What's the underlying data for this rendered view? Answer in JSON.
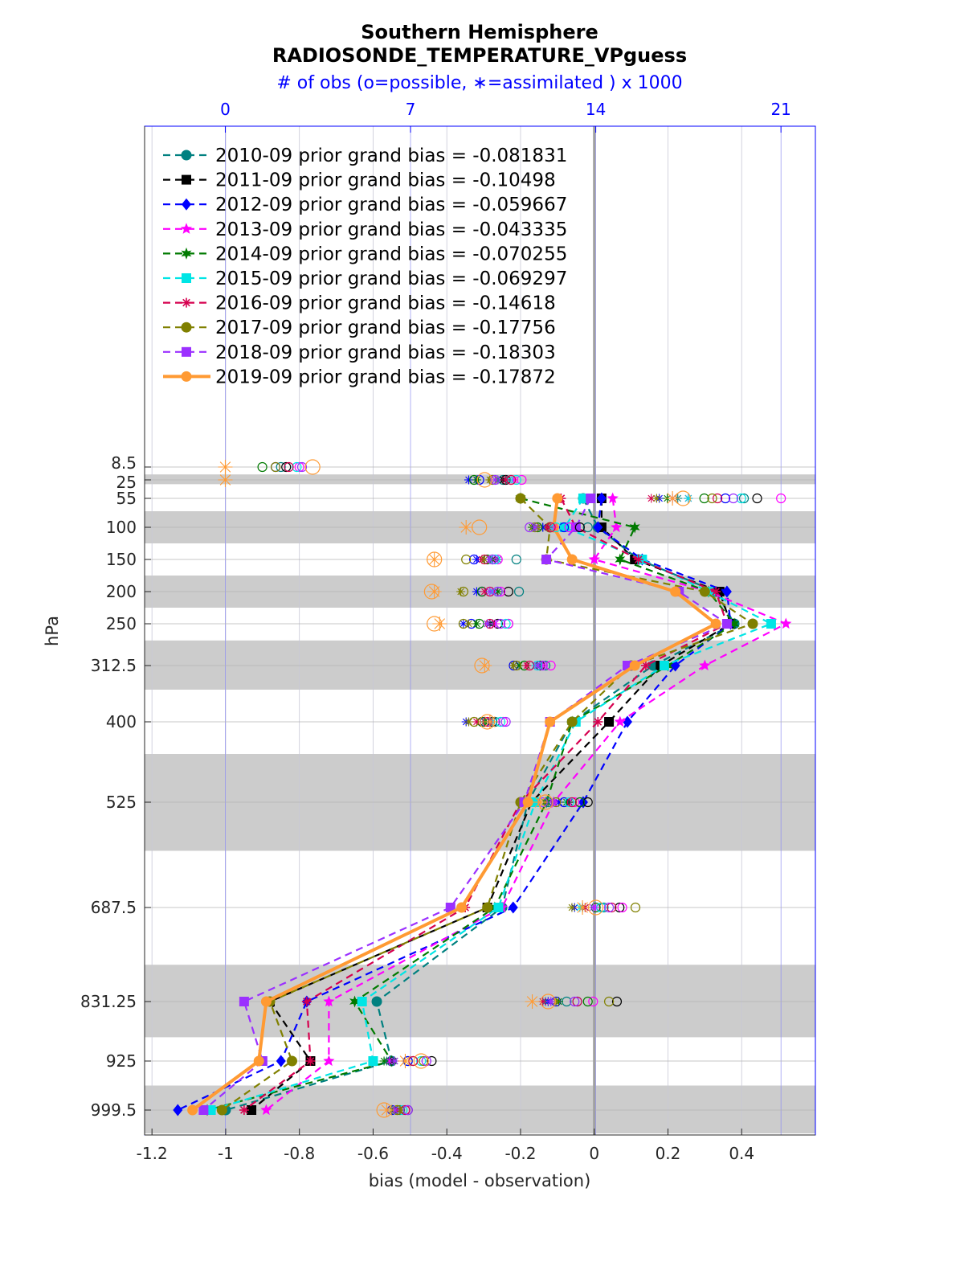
{
  "colors": {
    "obs_axis": "#0000ff",
    "shade": "#cccccc",
    "grid": "#9aa0c8",
    "zero_line": "#a0a0a0"
  },
  "chart_data": {
    "type": "line",
    "title": "Southern Hemisphere",
    "subtitle": "RADIOSONDE_TEMPERATURE_VPguess",
    "top_axis_label": "# of obs (o=possible, ∗=assimilated ) x 1000",
    "xlabel": "bias (model - observation)",
    "ylabel": "hPa",
    "xlim": [
      -1.22,
      0.6
    ],
    "x_ticks": [
      -1.2,
      -1,
      -0.8,
      -0.6,
      -0.4,
      -0.2,
      0,
      0.2,
      0.4
    ],
    "x_tick_labels": [
      "-1.2",
      "-1",
      "-0.8",
      "-0.6",
      "-0.4",
      "-0.2",
      "0",
      "0.2",
      "0.4"
    ],
    "top_ticks": [
      0,
      7,
      14,
      21
    ],
    "top_tick_labels": [
      "0",
      "7",
      "14",
      "21"
    ],
    "top_xlim": [
      -3.05,
      22.3
    ],
    "y_levels": [
      8.5,
      25,
      55,
      100,
      150,
      200,
      250,
      312.5,
      400,
      525,
      687.5,
      831.25,
      925,
      999.5
    ],
    "y_tick_labels": [
      "8.5",
      "25",
      "55",
      "100",
      "150",
      "200",
      "250",
      "312.5",
      "400",
      "525",
      "687.5",
      "831.25",
      "925",
      "999.5"
    ],
    "shaded_bands": [
      [
        18,
        32
      ],
      [
        75,
        125
      ],
      [
        175,
        225
      ],
      [
        275,
        350
      ],
      [
        450,
        600
      ],
      [
        775,
        887.5
      ],
      [
        962.25,
        1035
      ]
    ],
    "grid": true,
    "legend_position": "top-left",
    "series": [
      {
        "name": "2010-09 prior grand bias = -0.081831",
        "color": "#008080",
        "style": "dashed",
        "marker": "circle",
        "bias": [
          null,
          null,
          -0.03,
          0.01,
          0.12,
          0.33,
          0.38,
          0.16,
          -0.06,
          -0.18,
          -0.25,
          -0.59,
          -0.55,
          -1.0
        ],
        "possible": [
          2.1,
          10.5,
          19.6,
          13.7,
          11.0,
          11.1,
          10.7,
          12.1,
          10.2,
          12.2,
          14.3,
          12.9,
          6.9,
          6.6
        ],
        "assimilated": [
          null,
          10.3,
          17.1,
          12.0,
          10.3,
          10.1,
          10.1,
          11.9,
          10.0,
          12.2,
          13.5,
          12.1,
          6.1,
          6.5
        ]
      },
      {
        "name": "2011-09 prior grand bias = -0.10498",
        "color": "#000000",
        "style": "dashed",
        "marker": "square",
        "bias": [
          null,
          null,
          0.02,
          0.02,
          0.11,
          0.34,
          0.37,
          0.18,
          0.04,
          -0.17,
          -0.29,
          -0.88,
          -0.77,
          -0.93
        ],
        "possible": [
          2.3,
          10.6,
          20.1,
          13.4,
          10.1,
          10.7,
          10.3,
          11.9,
          10.1,
          13.7,
          14.9,
          14.8,
          7.8,
          6.9
        ],
        "assimilated": [
          null,
          10.5,
          17.5,
          12.2,
          10.0,
          10.2,
          10.0,
          11.8,
          10.0,
          13.0,
          13.6,
          12.3,
          6.3,
          6.6
        ]
      },
      {
        "name": "2012-09 prior grand bias = -0.059667",
        "color": "#0000ff",
        "style": "dashed",
        "marker": "diamond",
        "bias": [
          null,
          null,
          0.02,
          0.01,
          0.13,
          0.36,
          0.37,
          0.22,
          0.09,
          -0.03,
          -0.22,
          -0.78,
          -0.85,
          -1.13
        ],
        "possible": [
          1.9,
          9.6,
          18.9,
          12.8,
          9.4,
          9.7,
          9.3,
          10.9,
          9.8,
          12.8,
          14.2,
          12.5,
          6.9,
          6.3
        ],
        "assimilated": [
          null,
          9.2,
          16.4,
          12.0,
          9.5,
          9.5,
          9.0,
          10.9,
          9.1,
          12.6,
          13.2,
          12.2,
          6.2,
          6.4
        ]
      },
      {
        "name": "2013-09 prior grand bias = -0.043335",
        "color": "#ff00ff",
        "style": "dashed",
        "marker": "star",
        "bias": [
          null,
          null,
          0.05,
          0.06,
          0.0,
          0.31,
          0.52,
          0.3,
          0.07,
          -0.11,
          -0.25,
          -0.72,
          -0.72,
          -0.89
        ],
        "possible": [
          2.8,
          11.2,
          21.0,
          13.0,
          10.3,
          10.4,
          10.7,
          12.3,
          10.5,
          13.2,
          15.0,
          13.9,
          7.6,
          6.8
        ],
        "assimilated": [
          null,
          10.9,
          17.5,
          12.4,
          10.2,
          10.2,
          10.2,
          12.0,
          10.1,
          12.4,
          14.0,
          12.3,
          6.2,
          6.4
        ]
      },
      {
        "name": "2014-09 prior grand bias = -0.070255",
        "color": "#007a00",
        "style": "dashed",
        "marker": "hexagram",
        "bias": [
          null,
          null,
          -0.2,
          0.11,
          0.07,
          0.31,
          0.38,
          0.2,
          -0.06,
          -0.13,
          -0.27,
          -0.65,
          -0.55,
          -1.05
        ],
        "possible": [
          1.4,
          9.4,
          18.1,
          11.8,
          9.9,
          9.7,
          9.6,
          11.3,
          9.7,
          13.4,
          14.0,
          13.7,
          7.1,
          6.5
        ],
        "assimilated": [
          null,
          9.5,
          16.7,
          11.6,
          10.1,
          10.3,
          9.5,
          11.1,
          9.8,
          12.9,
          13.5,
          12.6,
          6.0,
          6.3
        ]
      },
      {
        "name": "2015-09 prior grand bias = -0.069297",
        "color": "#00e5e5",
        "style": "dashed",
        "marker": "square",
        "bias": [
          null,
          null,
          -0.03,
          -0.08,
          0.13,
          0.31,
          0.48,
          0.19,
          -0.05,
          -0.16,
          -0.26,
          -0.63,
          -0.6,
          -1.04
        ],
        "possible": [
          2.7,
          11.0,
          19.5,
          12.5,
          10.2,
          10.3,
          10.6,
          11.8,
          10.4,
          13.0,
          14.2,
          13.3,
          7.4,
          6.7
        ],
        "assimilated": [
          null,
          10.7,
          17.5,
          12.3,
          10.0,
          10.1,
          9.9,
          11.7,
          10.1,
          12.4,
          13.4,
          12.0,
          6.4,
          6.5
        ]
      },
      {
        "name": "2016-09 prior grand bias = -0.14618",
        "color": "#d6004f",
        "style": "dashed",
        "marker": "asterisk",
        "bias": [
          null,
          null,
          -0.09,
          -0.05,
          0.12,
          0.33,
          0.36,
          0.14,
          0.01,
          -0.2,
          -0.35,
          -0.78,
          -0.77,
          -0.95
        ],
        "possible": [
          2.4,
          10.8,
          18.6,
          12.3,
          9.8,
          10.0,
          10.0,
          11.5,
          9.9,
          13.1,
          14.6,
          13.3,
          7.1,
          6.8
        ],
        "assimilated": [
          null,
          10.6,
          16.1,
          12.2,
          9.7,
          9.8,
          9.9,
          11.4,
          9.5,
          12.4,
          13.6,
          12.0,
          6.4,
          6.5
        ]
      },
      {
        "name": "2017-09 prior grand bias = -0.17756",
        "color": "#808000",
        "style": "dashed",
        "marker": "circle",
        "bias": [
          null,
          null,
          -0.2,
          -0.12,
          -0.13,
          0.3,
          0.43,
          0.1,
          -0.06,
          -0.2,
          -0.29,
          -0.88,
          -0.82,
          -1.01
        ],
        "possible": [
          1.9,
          10.1,
          18.4,
          11.7,
          9.1,
          9.0,
          9.0,
          11.0,
          9.4,
          12.5,
          15.5,
          14.5,
          7.5,
          6.5
        ],
        "assimilated": [
          null,
          10.0,
          16.3,
          11.8,
          9.8,
          8.9,
          9.2,
          10.9,
          9.2,
          12.1,
          13.1,
          12.5,
          6.8,
          6.6
        ]
      },
      {
        "name": "2018-09 prior grand bias = -0.18303",
        "color": "#9b30ff",
        "style": "dashed",
        "marker": "square",
        "bias": [
          null,
          null,
          -0.01,
          -0.05,
          -0.13,
          0.23,
          0.36,
          0.09,
          -0.12,
          -0.19,
          -0.39,
          -0.95,
          -0.9,
          -1.06
        ],
        "possible": [
          2.9,
          10.2,
          19.2,
          11.5,
          10.1,
          10.3,
          10.4,
          12.0,
          10.6,
          12.0,
          14.5,
          13.2,
          7.6,
          6.9
        ],
        "assimilated": [
          null,
          10.2,
          16.9,
          11.7,
          10.0,
          10.0,
          9.9,
          11.8,
          10.0,
          12.4,
          13.9,
          12.3,
          6.4,
          6.4
        ]
      },
      {
        "name": "2019-09 prior grand bias = -0.17872",
        "color": "#ff9a33",
        "style": "solid",
        "marker": "circle",
        "bias": [
          null,
          null,
          -0.1,
          -0.11,
          -0.06,
          0.22,
          0.33,
          0.11,
          -0.12,
          -0.18,
          -0.36,
          -0.89,
          -0.91,
          -1.09
        ],
        "possible": [
          3.3,
          9.8,
          17.3,
          9.6,
          7.9,
          7.8,
          7.9,
          9.7,
          9.9,
          12.1,
          14.0,
          12.2,
          7.4,
          6.0
        ],
        "assimilated": [
          0.0,
          0.0,
          16.9,
          9.1,
          7.9,
          7.9,
          8.1,
          9.8,
          10.0,
          11.9,
          13.5,
          11.6,
          6.8,
          6.1
        ]
      }
    ]
  }
}
